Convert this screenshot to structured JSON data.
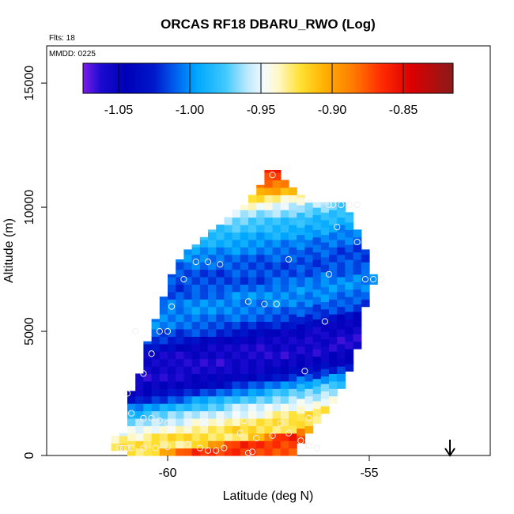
{
  "chart_data": {
    "type": "heatmap",
    "title": "ORCAS RF18 DBARU_RWO (Log)",
    "flts_label": "Flts: 18",
    "mmdd_label": "MMDD: 0225",
    "xlabel": "Latitude (deg N)",
    "ylabel": "Altitude (m)",
    "xlim": [
      -63,
      -52
    ],
    "ylim": [
      0,
      16500
    ],
    "x_ticks": [
      -60,
      -55
    ],
    "x_tick_labels": [
      "-60",
      "-55"
    ],
    "y_ticks": [
      0,
      5000,
      10000,
      15000
    ],
    "y_tick_labels": [
      "0",
      "5000",
      "10000",
      "15000"
    ],
    "colorbar": {
      "range": [
        -1.075,
        -0.815
      ],
      "ticks": [
        -1.05,
        -1.0,
        -0.95,
        -0.9,
        -0.85
      ],
      "tick_labels": [
        "-1.05",
        "-1.00",
        "-0.95",
        "-0.90",
        "-0.85"
      ],
      "stops": [
        {
          "v": -1.075,
          "c": "#7a1de8"
        },
        {
          "v": -1.062,
          "c": "#1a0ad0"
        },
        {
          "v": -1.045,
          "c": "#0000b8"
        },
        {
          "v": -1.025,
          "c": "#0018cc"
        },
        {
          "v": -1.01,
          "c": "#0060ee"
        },
        {
          "v": -0.995,
          "c": "#00a8ff"
        },
        {
          "v": -0.975,
          "c": "#40c8ff"
        },
        {
          "v": -0.96,
          "c": "#b8e8ff"
        },
        {
          "v": -0.948,
          "c": "#f4fbff"
        },
        {
          "v": -0.938,
          "c": "#fff8c8"
        },
        {
          "v": -0.922,
          "c": "#ffe030"
        },
        {
          "v": -0.905,
          "c": "#ffb000"
        },
        {
          "v": -0.885,
          "c": "#ff7a00"
        },
        {
          "v": -0.865,
          "c": "#ff2a00"
        },
        {
          "v": -0.845,
          "c": "#dd0000"
        },
        {
          "v": -0.815,
          "c": "#8a1a1a"
        }
      ]
    },
    "grid": false,
    "cell_size": {
      "lat": 0.2,
      "alt": 300
    },
    "columns": [
      {
        "lat": -61.3,
        "alt_min": 200,
        "alt_max": 800
      },
      {
        "lat": -61.1,
        "alt_min": 200,
        "alt_max": 900
      },
      {
        "lat": -60.9,
        "alt_min": 0,
        "alt_max": 2600
      },
      {
        "lat": -60.7,
        "alt_min": 0,
        "alt_max": 3300
      },
      {
        "lat": -60.5,
        "alt_min": 0,
        "alt_max": 4600
      },
      {
        "lat": -60.3,
        "alt_min": 0,
        "alt_max": 5500
      },
      {
        "lat": -60.1,
        "alt_min": 0,
        "alt_max": 6400
      },
      {
        "lat": -59.9,
        "alt_min": 0,
        "alt_max": 7300
      },
      {
        "lat": -59.7,
        "alt_min": 0,
        "alt_max": 7900
      },
      {
        "lat": -59.5,
        "alt_min": 0,
        "alt_max": 8300
      },
      {
        "lat": -59.3,
        "alt_min": 0,
        "alt_max": 8500
      },
      {
        "lat": -59.1,
        "alt_min": 0,
        "alt_max": 8800
      },
      {
        "lat": -58.9,
        "alt_min": 0,
        "alt_max": 9100
      },
      {
        "lat": -58.7,
        "alt_min": 0,
        "alt_max": 9300
      },
      {
        "lat": -58.5,
        "alt_min": 0,
        "alt_max": 9600
      },
      {
        "lat": -58.3,
        "alt_min": 0,
        "alt_max": 9900
      },
      {
        "lat": -58.1,
        "alt_min": 0,
        "alt_max": 10100
      },
      {
        "lat": -57.9,
        "alt_min": 0,
        "alt_max": 10500
      },
      {
        "lat": -57.7,
        "alt_min": 0,
        "alt_max": 10900
      },
      {
        "lat": -57.5,
        "alt_min": 0,
        "alt_max": 11500
      },
      {
        "lat": -57.3,
        "alt_min": 0,
        "alt_max": 11500
      },
      {
        "lat": -57.1,
        "alt_min": 0,
        "alt_max": 11100
      },
      {
        "lat": -56.9,
        "alt_min": 0,
        "alt_max": 10800
      },
      {
        "lat": -56.7,
        "alt_min": 500,
        "alt_max": 10500
      },
      {
        "lat": -56.5,
        "alt_min": 900,
        "alt_max": 10300
      },
      {
        "lat": -56.3,
        "alt_min": 1300,
        "alt_max": 10200
      },
      {
        "lat": -56.1,
        "alt_min": 1700,
        "alt_max": 10200
      },
      {
        "lat": -55.9,
        "alt_min": 2100,
        "alt_max": 10200
      },
      {
        "lat": -55.7,
        "alt_min": 2700,
        "alt_max": 10200
      },
      {
        "lat": -55.5,
        "alt_min": 3400,
        "alt_max": 9800
      },
      {
        "lat": -55.3,
        "alt_min": 4300,
        "alt_max": 9100
      },
      {
        "lat": -55.1,
        "alt_min": 6000,
        "alt_max": 8300
      },
      {
        "lat": -54.9,
        "alt_min": 6900,
        "alt_max": 7300
      }
    ],
    "bands": [
      {
        "a": 0,
        "v": -0.86
      },
      {
        "a": 500,
        "v": -0.845
      },
      {
        "a": 800,
        "v": -0.915
      },
      {
        "a": 1200,
        "v": -0.905
      },
      {
        "a": 1600,
        "v": -0.93
      },
      {
        "a": 2000,
        "v": -0.945
      },
      {
        "a": 2400,
        "v": -0.97
      },
      {
        "a": 2800,
        "v": -1.0
      },
      {
        "a": 3200,
        "v": -1.03
      },
      {
        "a": 3800,
        "v": -1.045
      },
      {
        "a": 4600,
        "v": -1.04
      },
      {
        "a": 5200,
        "v": -1.005
      },
      {
        "a": 5800,
        "v": -0.99
      },
      {
        "a": 6400,
        "v": -0.985
      },
      {
        "a": 7000,
        "v": -1.0
      },
      {
        "a": 7600,
        "v": -1.0
      },
      {
        "a": 8200,
        "v": -0.99
      },
      {
        "a": 8800,
        "v": -0.975
      },
      {
        "a": 9400,
        "v": -0.96
      },
      {
        "a": 10000,
        "v": -0.93
      },
      {
        "a": 10600,
        "v": -0.88
      },
      {
        "a": 11200,
        "v": -0.85
      },
      {
        "a": 11600,
        "v": -0.845
      }
    ],
    "tilt_per_deg": 260,
    "points": [
      [
        -61.2,
        300
      ],
      [
        -61.1,
        300
      ],
      [
        -61.0,
        300
      ],
      [
        -60.9,
        300
      ],
      [
        -60.6,
        300
      ],
      [
        -60.3,
        300
      ],
      [
        -60.0,
        350
      ],
      [
        -59.5,
        450
      ],
      [
        -59.2,
        300
      ],
      [
        -59.0,
        200
      ],
      [
        -58.8,
        200
      ],
      [
        -58.6,
        300
      ],
      [
        -58.2,
        900
      ],
      [
        -57.8,
        700
      ],
      [
        -57.4,
        800
      ],
      [
        -57.0,
        900
      ],
      [
        -56.7,
        600
      ],
      [
        -56.5,
        400
      ],
      [
        -56.3,
        300
      ],
      [
        -57.9,
        150
      ],
      [
        -58.0,
        100
      ],
      [
        -60.9,
        1700
      ],
      [
        -60.6,
        1500
      ],
      [
        -60.4,
        1500
      ],
      [
        -60.2,
        1400
      ],
      [
        -60.0,
        1300
      ],
      [
        -59.5,
        1300
      ],
      [
        -59.1,
        1300
      ],
      [
        -58.6,
        1500
      ],
      [
        -58.1,
        1400
      ],
      [
        -57.2,
        1300
      ],
      [
        -56.5,
        1500
      ],
      [
        -61.0,
        2500
      ],
      [
        -60.6,
        3300
      ],
      [
        -60.4,
        4100
      ],
      [
        -60.2,
        5000
      ],
      [
        -59.9,
        6000
      ],
      [
        -59.6,
        7100
      ],
      [
        -59.3,
        7800
      ],
      [
        -59.0,
        7800
      ],
      [
        -58.7,
        7700
      ],
      [
        -58.0,
        6200
      ],
      [
        -57.6,
        6100
      ],
      [
        -57.3,
        6100
      ],
      [
        -56.1,
        5400
      ],
      [
        -56.6,
        3400
      ],
      [
        -57.0,
        7900
      ],
      [
        -56.0,
        7300
      ],
      [
        -55.1,
        7100
      ],
      [
        -54.9,
        7100
      ],
      [
        -54.7,
        7100
      ],
      [
        -55.3,
        8600
      ],
      [
        -55.8,
        9200
      ],
      [
        -56.0,
        10100
      ],
      [
        -55.9,
        10100
      ],
      [
        -55.7,
        10100
      ],
      [
        -55.5,
        10100
      ],
      [
        -55.3,
        10100
      ],
      [
        -57.4,
        11300
      ],
      [
        -60.0,
        5000
      ],
      [
        -60.8,
        5000
      ]
    ],
    "arrow_lat": -53.0,
    "colors": {
      "frame": "#000000",
      "point_stroke": "#f0f0f0"
    }
  }
}
